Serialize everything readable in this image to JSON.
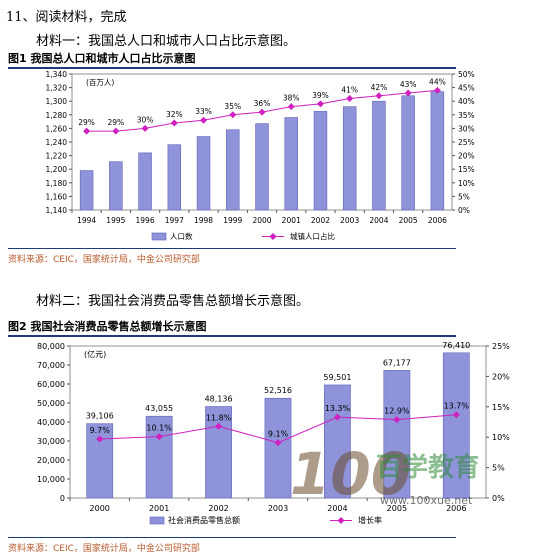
{
  "question": {
    "title": "11、阅读材料，完成",
    "material1_label": "材料一：我国总人口和城市人口占比示意图。",
    "material2_label": "材料二：我国社会消费品零售总额增长示意图。"
  },
  "watermark": {
    "logo": "100",
    "brand": "百学教育",
    "url": "www.100xue.net"
  },
  "colors": {
    "bar": "#8f93d9",
    "bar_edge": "#5f63b8",
    "line": "#d020c0",
    "rule": "#1f3a78",
    "source": "#b85a2c"
  },
  "chart_data": [
    {
      "type": "bar",
      "title": "图1  我国总人口和城市人口占比示意图",
      "unit_label": "(百万人)",
      "categories": [
        "1994",
        "1995",
        "1996",
        "1997",
        "1998",
        "1999",
        "2000",
        "2001",
        "2002",
        "2003",
        "2004",
        "2005",
        "2006"
      ],
      "ylim": [
        1140,
        1340
      ],
      "yticks": [
        1140,
        1160,
        1180,
        1200,
        1220,
        1240,
        1260,
        1280,
        1300,
        1320,
        1340
      ],
      "ytick_labels": [
        "1,140",
        "1,160",
        "1,180",
        "1,200",
        "1,220",
        "1,240",
        "1,260",
        "1,280",
        "1,300",
        "1,320",
        "1,340"
      ],
      "y2lim": [
        0,
        50
      ],
      "y2ticks": [
        0,
        5,
        10,
        15,
        20,
        25,
        30,
        35,
        40,
        45,
        50
      ],
      "series": [
        {
          "name": "人口数",
          "type": "bar",
          "axis": "left",
          "values": [
            1198,
            1211,
            1224,
            1236,
            1248,
            1258,
            1267,
            1276,
            1285,
            1292,
            1300,
            1308,
            1314
          ]
        },
        {
          "name": "城镇人口占比",
          "type": "line",
          "axis": "right",
          "values": [
            29,
            29,
            30,
            32,
            33,
            35,
            36,
            38,
            39,
            41,
            42,
            43,
            44
          ],
          "labels": [
            "29%",
            "29%",
            "30%",
            "32%",
            "33%",
            "35%",
            "36%",
            "38%",
            "39%",
            "41%",
            "42%",
            "43%",
            "44%"
          ]
        }
      ],
      "legend": [
        "人口数",
        "城镇人口占比"
      ],
      "legend_position": "bottom",
      "source": "资料来源：CEIC，国家统计局，中金公司研究部"
    },
    {
      "type": "bar",
      "title": "图2  我国社会消费品零售总额增长示意图",
      "unit_label": "(亿元)",
      "categories": [
        "2000",
        "2001",
        "2002",
        "2003",
        "2004",
        "2005",
        "2006"
      ],
      "ylim": [
        0,
        80000
      ],
      "yticks": [
        0,
        10000,
        20000,
        30000,
        40000,
        50000,
        60000,
        70000,
        80000
      ],
      "ytick_labels": [
        "0",
        "10,000",
        "20,000",
        "30,000",
        "40,000",
        "50,000",
        "60,000",
        "70,000",
        "80,000"
      ],
      "y2lim": [
        0,
        25
      ],
      "y2ticks": [
        0,
        5,
        10,
        15,
        20,
        25
      ],
      "series": [
        {
          "name": "社会消费品零售总额",
          "type": "bar",
          "axis": "left",
          "values": [
            39106,
            43055,
            48136,
            52516,
            59501,
            67177,
            76410
          ],
          "labels": [
            "39,106",
            "43,055",
            "48,136",
            "52,516",
            "59,501",
            "67,177",
            "76,410"
          ]
        },
        {
          "name": "增长率",
          "type": "line",
          "axis": "right",
          "values": [
            9.7,
            10.1,
            11.8,
            9.1,
            13.3,
            12.9,
            13.7
          ],
          "labels": [
            "9.7%",
            "10.1%",
            "11.8%",
            "9.1%",
            "13.3%",
            "12.9%",
            "13.7%"
          ]
        }
      ],
      "legend": [
        "社会消费品零售总额",
        "增长率"
      ],
      "legend_position": "bottom",
      "source": "资料来源：CEIC，国家统计局，中金公司研究部"
    }
  ]
}
